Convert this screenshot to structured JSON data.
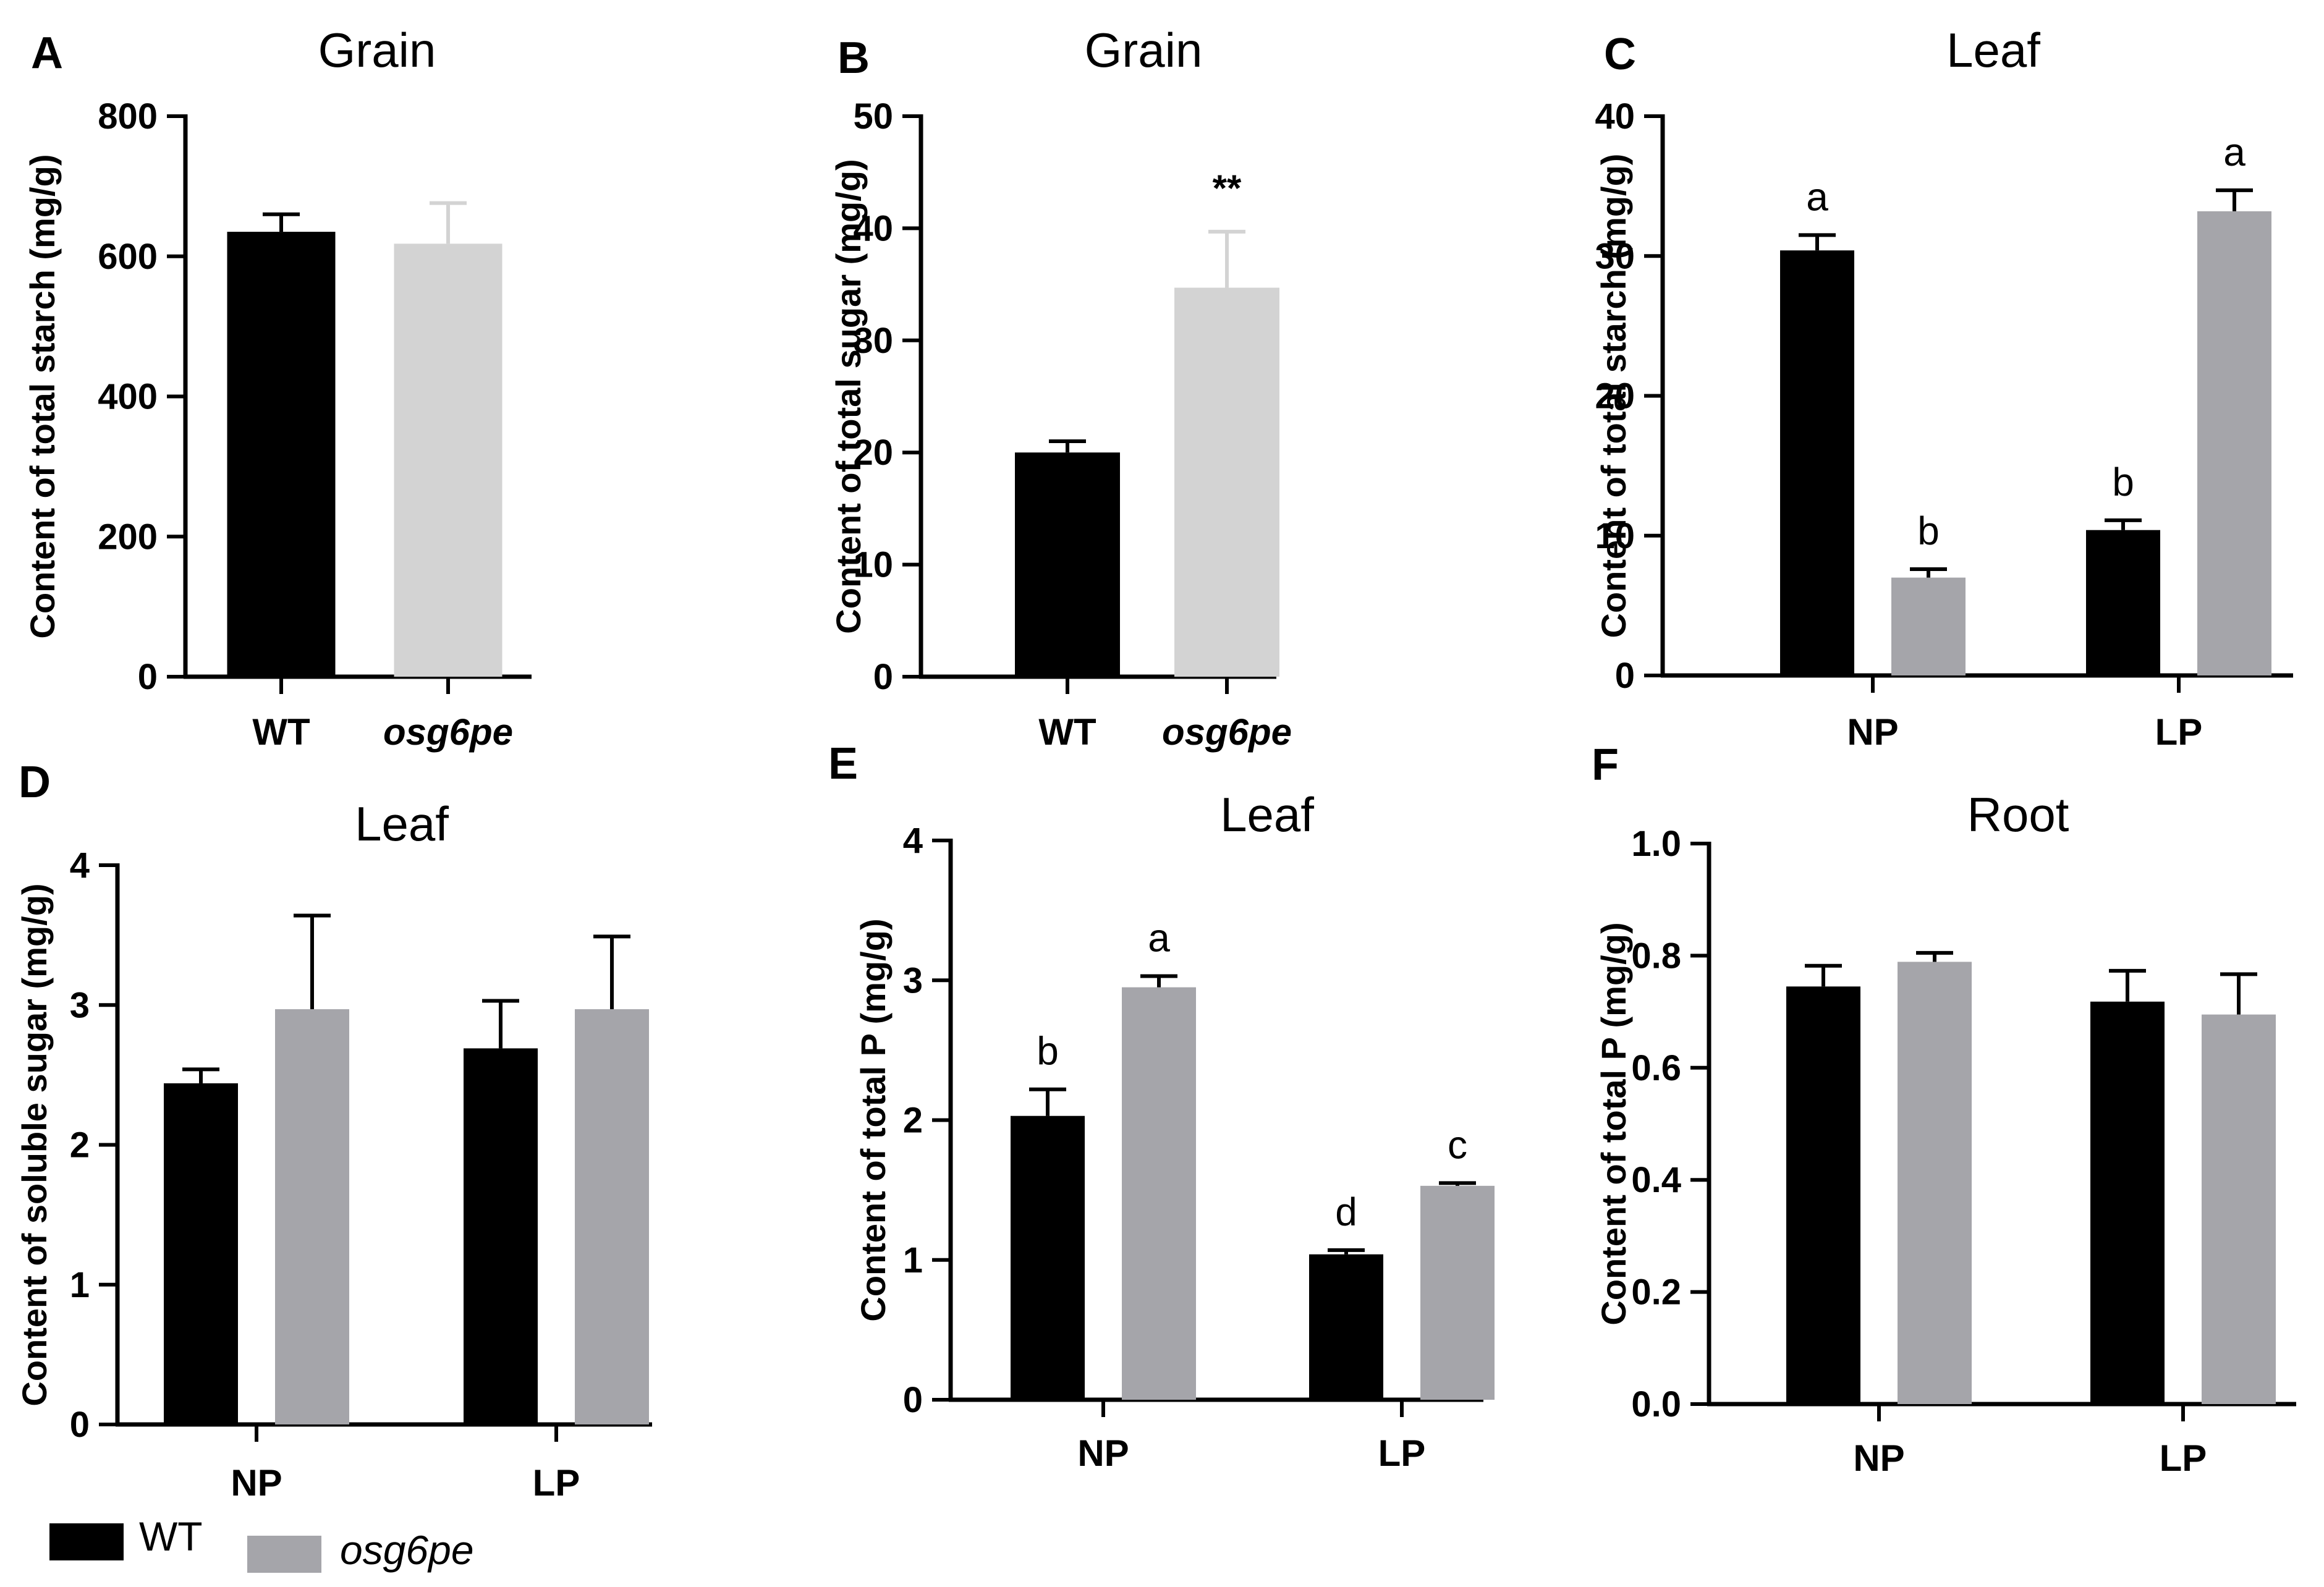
{
  "colors": {
    "wt": "#000000",
    "grain_mutant": "#d3d3d3",
    "mutant": "#a5a5aa",
    "axis": "#000000"
  },
  "legend": {
    "wt_label": "WT",
    "mutant_label": "osg6pe"
  },
  "chart_data": [
    {
      "panel": "A",
      "type": "bar",
      "title": "Grain",
      "ylabel": "Content of total starch (mg/g)",
      "xlabel": "",
      "ylim": [
        0,
        800
      ],
      "yticks": [
        0,
        200,
        400,
        600,
        800
      ],
      "categories": [
        "WT",
        "osg6pe"
      ],
      "series": [
        {
          "name": "value",
          "values": [
            635,
            618
          ],
          "errors": [
            25,
            58
          ]
        }
      ],
      "annotations": []
    },
    {
      "panel": "B",
      "type": "bar",
      "title": "Grain",
      "ylabel": "Content of total sugar (mg/g)",
      "xlabel": "",
      "ylim": [
        0,
        50
      ],
      "yticks": [
        0,
        10,
        20,
        30,
        40,
        50
      ],
      "categories": [
        "WT",
        "osg6pe"
      ],
      "series": [
        {
          "name": "value",
          "values": [
            20,
            34.7
          ],
          "errors": [
            1,
            5
          ]
        }
      ],
      "annotations": [
        {
          "category": "osg6pe",
          "text": "**"
        }
      ]
    },
    {
      "panel": "C",
      "type": "bar",
      "title": "Leaf",
      "ylabel": "Content of total starch (mg/g)",
      "xlabel": "",
      "ylim": [
        0,
        40
      ],
      "yticks": [
        0,
        10,
        20,
        30,
        40
      ],
      "categories": [
        "NP",
        "LP"
      ],
      "series": [
        {
          "name": "WT",
          "values": [
            30.4,
            10.4
          ],
          "errors": [
            1.1,
            0.7
          ],
          "letters": [
            "a",
            "b"
          ]
        },
        {
          "name": "osg6pe",
          "values": [
            7.0,
            33.2
          ],
          "errors": [
            0.6,
            1.5
          ],
          "letters": [
            "b",
            "a"
          ]
        }
      ]
    },
    {
      "panel": "D",
      "type": "bar",
      "title": "Leaf",
      "ylabel": "Content of soluble sugar (mg/g)",
      "xlabel": "",
      "ylim": [
        0,
        4
      ],
      "yticks": [
        0,
        1,
        2,
        3,
        4
      ],
      "categories": [
        "NP",
        "LP"
      ],
      "series": [
        {
          "name": "WT",
          "values": [
            2.44,
            2.69
          ],
          "errors": [
            0.1,
            0.34
          ]
        },
        {
          "name": "osg6pe",
          "values": [
            2.97,
            2.97
          ],
          "errors": [
            0.67,
            0.52
          ]
        }
      ]
    },
    {
      "panel": "E",
      "type": "bar",
      "title": "Leaf",
      "ylabel": "Content of total P (mg/g)",
      "xlabel": "",
      "ylim": [
        0,
        4
      ],
      "yticks": [
        0,
        1,
        2,
        3,
        4
      ],
      "categories": [
        "NP",
        "LP"
      ],
      "series": [
        {
          "name": "WT",
          "values": [
            2.03,
            1.04
          ],
          "errors": [
            0.19,
            0.03
          ],
          "letters": [
            "b",
            "d"
          ]
        },
        {
          "name": "osg6pe",
          "values": [
            2.95,
            1.53
          ],
          "errors": [
            0.08,
            0.02
          ],
          "letters": [
            "a",
            "c"
          ]
        }
      ]
    },
    {
      "panel": "F",
      "type": "bar",
      "title": "Root",
      "ylabel": "Content of total P (mg/g)",
      "xlabel": "",
      "ylim": [
        0,
        1.0
      ],
      "yticks": [
        "0.0",
        "0.2",
        "0.4",
        "0.6",
        "0.8",
        "1.0"
      ],
      "categories": [
        "NP",
        "LP"
      ],
      "series": [
        {
          "name": "WT",
          "values": [
            0.745,
            0.718
          ],
          "errors": [
            0.037,
            0.055
          ]
        },
        {
          "name": "osg6pe",
          "values": [
            0.789,
            0.695
          ],
          "errors": [
            0.016,
            0.072
          ]
        }
      ]
    }
  ]
}
